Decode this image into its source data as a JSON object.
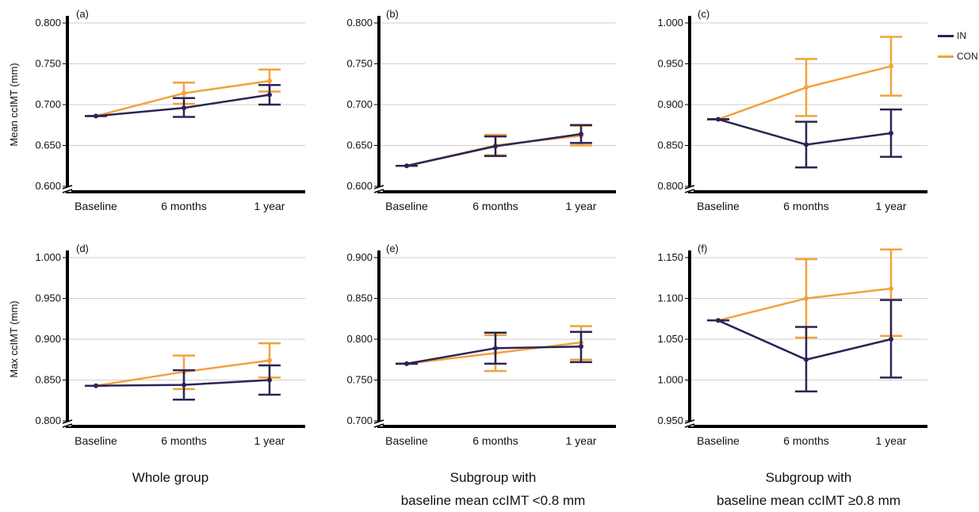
{
  "colors": {
    "IN": "#2b2457",
    "CON": "#f2a23c",
    "grid": "#cfcfcf",
    "axis": "#000000"
  },
  "legend": [
    {
      "key": "IN",
      "label": "IN",
      "color": "#2b2457"
    },
    {
      "key": "CON",
      "label": "CON",
      "color": "#f2a23c"
    }
  ],
  "row_labels": [
    "Mean ccIMT (mm)",
    "Max ccIMT (mm)"
  ],
  "column_captions": [
    {
      "line1": "Whole group",
      "line2": ""
    },
    {
      "line1": "Subgroup with",
      "line2": "baseline mean ccIMT <0.8 mm"
    },
    {
      "line1": "Subgroup with",
      "line2": "baseline mean ccIMT ≥0.8 mm"
    }
  ],
  "chart_data": [
    {
      "type": "line",
      "panel_label": "(a)",
      "axis_break": true,
      "categories": [
        "Baseline",
        "6 months",
        "1 year"
      ],
      "yticks": [
        "0.600",
        "0.650",
        "0.700",
        "0.750",
        "0.800"
      ],
      "ylim": [
        0.6,
        0.8
      ],
      "series": [
        {
          "name": "IN",
          "values": [
            0.686,
            0.696,
            0.712
          ],
          "err_low": [
            0.686,
            0.685,
            0.7
          ],
          "err_high": [
            0.686,
            0.708,
            0.724
          ]
        },
        {
          "name": "CON",
          "values": [
            0.686,
            0.714,
            0.729
          ],
          "err_low": [
            0.686,
            0.701,
            0.716
          ],
          "err_high": [
            0.686,
            0.727,
            0.743
          ]
        }
      ]
    },
    {
      "type": "line",
      "panel_label": "(b)",
      "axis_break": true,
      "categories": [
        "Baseline",
        "6 months",
        "1 year"
      ],
      "yticks": [
        "0.600",
        "0.650",
        "0.700",
        "0.750",
        "0.800"
      ],
      "ylim": [
        0.6,
        0.8
      ],
      "series": [
        {
          "name": "IN",
          "values": [
            0.625,
            0.649,
            0.664
          ],
          "err_low": [
            0.625,
            0.637,
            0.653
          ],
          "err_high": [
            0.625,
            0.661,
            0.675
          ]
        },
        {
          "name": "CON",
          "values": [
            0.625,
            0.65,
            0.662
          ],
          "err_low": [
            0.625,
            0.638,
            0.65
          ],
          "err_high": [
            0.625,
            0.663,
            0.674
          ]
        }
      ]
    },
    {
      "type": "line",
      "panel_label": "(c)",
      "axis_break": true,
      "categories": [
        "Baseline",
        "6 months",
        "1 year"
      ],
      "yticks": [
        "0.800",
        "0.850",
        "0.900",
        "0.950",
        "1.000"
      ],
      "ylim": [
        0.8,
        1.0
      ],
      "series": [
        {
          "name": "IN",
          "values": [
            0.882,
            0.851,
            0.865
          ],
          "err_low": [
            0.882,
            0.823,
            0.836
          ],
          "err_high": [
            0.882,
            0.879,
            0.894
          ]
        },
        {
          "name": "CON",
          "values": [
            0.882,
            0.921,
            0.947
          ],
          "err_low": [
            0.882,
            0.886,
            0.911
          ],
          "err_high": [
            0.882,
            0.956,
            0.983
          ]
        }
      ]
    },
    {
      "type": "line",
      "panel_label": "(d)",
      "axis_break": true,
      "categories": [
        "Baseline",
        "6 months",
        "1 year"
      ],
      "yticks": [
        "0.800",
        "0.850",
        "0.900",
        "0.950",
        "1.000"
      ],
      "ylim": [
        0.8,
        1.0
      ],
      "series": [
        {
          "name": "IN",
          "values": [
            0.843,
            0.844,
            0.85
          ],
          "err_low": [
            0.843,
            0.826,
            0.832
          ],
          "err_high": [
            0.843,
            0.862,
            0.868
          ]
        },
        {
          "name": "CON",
          "values": [
            0.843,
            0.86,
            0.874
          ],
          "err_low": [
            0.843,
            0.839,
            0.853
          ],
          "err_high": [
            0.843,
            0.88,
            0.895
          ]
        }
      ]
    },
    {
      "type": "line",
      "panel_label": "(e)",
      "axis_break": true,
      "categories": [
        "Baseline",
        "6 months",
        "1 year"
      ],
      "yticks": [
        "0.700",
        "0.750",
        "0.800",
        "0.850",
        "0.900"
      ],
      "ylim": [
        0.7,
        0.9
      ],
      "series": [
        {
          "name": "IN",
          "values": [
            0.77,
            0.789,
            0.791
          ],
          "err_low": [
            0.77,
            0.77,
            0.772
          ],
          "err_high": [
            0.77,
            0.808,
            0.809
          ]
        },
        {
          "name": "CON",
          "values": [
            0.77,
            0.783,
            0.796
          ],
          "err_low": [
            0.77,
            0.761,
            0.775
          ],
          "err_high": [
            0.77,
            0.805,
            0.816
          ]
        }
      ]
    },
    {
      "type": "line",
      "panel_label": "(f)",
      "axis_break": true,
      "categories": [
        "Baseline",
        "6 months",
        "1 year"
      ],
      "yticks": [
        "0.950",
        "1.000",
        "1.050",
        "1.100",
        "1.150"
      ],
      "ylim": [
        0.95,
        1.15
      ],
      "series": [
        {
          "name": "IN",
          "values": [
            1.073,
            1.025,
            1.05
          ],
          "err_low": [
            1.073,
            0.986,
            1.003
          ],
          "err_high": [
            1.073,
            1.065,
            1.098
          ]
        },
        {
          "name": "CON",
          "values": [
            1.073,
            1.1,
            1.112
          ],
          "err_low": [
            1.073,
            1.052,
            1.054
          ],
          "err_high": [
            1.073,
            1.148,
            1.16
          ]
        }
      ]
    }
  ]
}
